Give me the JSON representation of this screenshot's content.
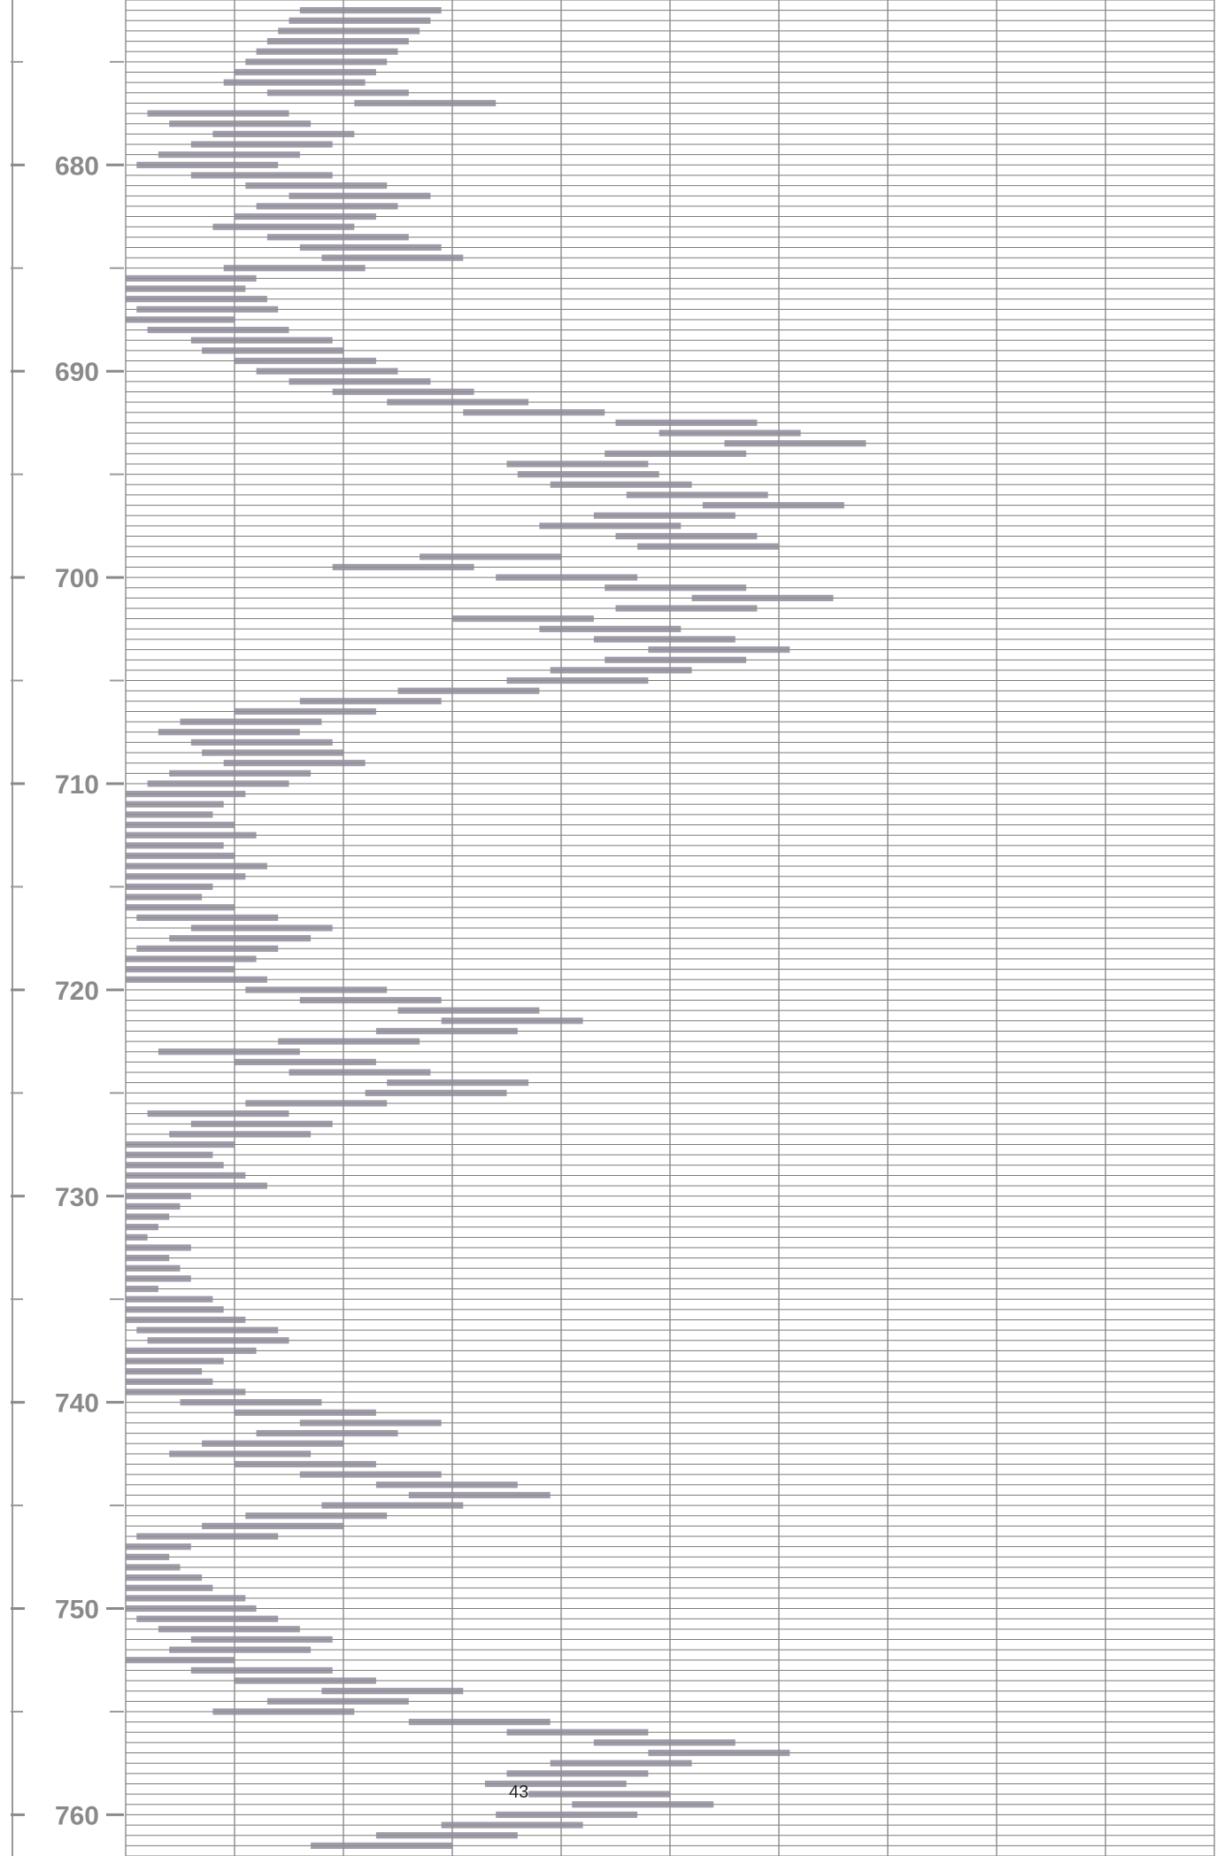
{
  "chart_data": {
    "type": "bar",
    "orientation": "horizontal",
    "title": "",
    "xlabel": "",
    "ylabel": "",
    "depth_axis": {
      "min": 672.0,
      "max": 762.0,
      "tick_labels": [
        "680",
        "690",
        "700",
        "710",
        "720",
        "730",
        "740",
        "750",
        "760"
      ],
      "ticks": [
        680,
        690,
        700,
        710,
        720,
        730,
        740,
        750,
        760
      ],
      "minor_tick_step": 5
    },
    "value_axis": {
      "min": 0,
      "max": 10,
      "vertical_gridlines": 10,
      "value_tick_labels": []
    },
    "row_step": 0.5,
    "grid": true,
    "bar_color": "#8f8b99",
    "series": [
      {
        "depths": [
          672.5,
          673.0,
          673.5,
          674.0,
          674.5,
          675.0,
          675.5,
          676.0,
          676.5,
          677.0,
          677.5,
          678.0,
          678.5,
          679.0,
          679.5,
          680.0,
          680.5,
          681.0,
          681.5,
          682.0,
          682.5,
          683.0,
          683.5,
          684.0,
          684.5,
          685.0,
          685.5,
          686.0,
          686.5,
          687.0,
          687.5,
          688.0,
          688.5,
          689.0,
          689.5,
          690.0,
          690.5,
          691.0,
          691.5,
          692.0,
          692.5,
          693.0,
          693.5,
          694.0,
          694.5,
          695.0,
          695.5,
          696.0,
          696.5,
          697.0,
          697.5,
          698.0,
          698.5,
          699.0,
          699.5,
          700.0,
          700.5,
          701.0,
          701.5,
          702.0,
          702.5,
          703.0,
          703.5,
          704.0,
          704.5,
          705.0,
          705.5,
          706.0,
          706.5,
          707.0,
          707.5,
          708.0,
          708.5,
          709.0,
          709.5,
          710.0,
          710.5,
          711.0,
          711.5,
          712.0,
          712.5,
          713.0,
          713.5,
          714.0,
          714.5,
          715.0,
          715.5,
          716.0,
          716.5,
          717.0,
          717.5,
          718.0,
          718.5,
          719.0,
          719.5,
          720.0,
          720.5,
          721.0,
          721.5,
          722.0,
          722.5,
          723.0,
          723.5,
          724.0,
          724.5,
          725.0,
          725.5,
          726.0,
          726.5,
          727.0,
          727.5,
          728.0,
          728.5,
          729.0,
          729.5,
          730.0,
          730.5,
          731.0,
          731.5,
          732.0,
          732.5,
          733.0,
          733.5,
          734.0,
          734.5,
          735.0,
          735.5,
          736.0,
          736.5,
          737.0,
          737.5,
          738.0,
          738.5,
          739.0,
          739.5,
          740.0,
          740.5,
          741.0,
          741.5,
          742.0,
          742.5,
          743.0,
          743.5,
          744.0,
          744.5,
          745.0,
          745.5,
          746.0,
          746.5,
          747.0,
          747.5,
          748.0,
          748.5,
          749.0,
          749.5,
          750.0,
          750.5,
          751.0,
          751.5,
          752.0,
          752.5,
          753.0,
          753.5,
          754.0,
          754.5,
          755.0,
          755.5,
          756.0,
          756.5,
          757.0,
          757.5,
          758.0,
          758.5,
          759.0,
          759.5,
          760.0,
          760.5,
          761.0,
          761.5
        ],
        "values": [
          2.9,
          2.8,
          2.7,
          2.6,
          2.5,
          2.4,
          2.3,
          2.2,
          2.6,
          3.4,
          1.5,
          1.7,
          2.1,
          1.9,
          1.6,
          1.4,
          1.9,
          2.4,
          2.8,
          2.5,
          2.3,
          2.1,
          2.6,
          2.9,
          3.1,
          2.2,
          1.2,
          1.1,
          1.3,
          1.4,
          1.0,
          1.5,
          1.9,
          2.0,
          2.3,
          2.5,
          2.8,
          3.2,
          3.7,
          4.4,
          5.8,
          6.2,
          6.8,
          5.7,
          4.8,
          4.9,
          5.2,
          5.9,
          6.6,
          5.6,
          5.1,
          5.8,
          6.0,
          4.0,
          3.2,
          4.7,
          5.7,
          6.5,
          5.8,
          4.3,
          5.1,
          5.6,
          6.1,
          5.7,
          5.2,
          4.8,
          3.8,
          2.9,
          2.3,
          1.8,
          1.6,
          1.9,
          2.0,
          2.2,
          1.7,
          1.5,
          1.1,
          0.9,
          0.8,
          1.0,
          1.2,
          0.9,
          1.0,
          1.3,
          1.1,
          0.8,
          0.7,
          1.0,
          1.4,
          1.9,
          1.7,
          1.4,
          1.2,
          1.0,
          1.3,
          2.4,
          2.9,
          3.8,
          4.2,
          3.6,
          2.7,
          1.6,
          2.3,
          2.8,
          3.7,
          3.5,
          2.4,
          1.5,
          1.9,
          1.7,
          1.0,
          0.8,
          0.9,
          1.1,
          1.3,
          0.6,
          0.5,
          0.4,
          0.3,
          0.2,
          0.6,
          0.4,
          0.5,
          0.6,
          0.3,
          0.8,
          0.9,
          1.1,
          1.4,
          1.5,
          1.2,
          0.9,
          0.7,
          0.8,
          1.1,
          1.8,
          2.3,
          2.9,
          2.5,
          2.0,
          1.7,
          2.3,
          2.9,
          3.6,
          3.9,
          3.1,
          2.4,
          2.0,
          1.4,
          0.6,
          0.4,
          0.5,
          0.7,
          0.8,
          1.1,
          1.2,
          1.4,
          1.6,
          1.9,
          1.7,
          1.0,
          1.9,
          2.3,
          3.1,
          2.6,
          2.1,
          3.9,
          4.8,
          5.6,
          6.1,
          5.2,
          4.8,
          4.6,
          5.0,
          5.4,
          4.7,
          4.2,
          3.6,
          3.0
        ]
      }
    ],
    "page_number": "43"
  }
}
